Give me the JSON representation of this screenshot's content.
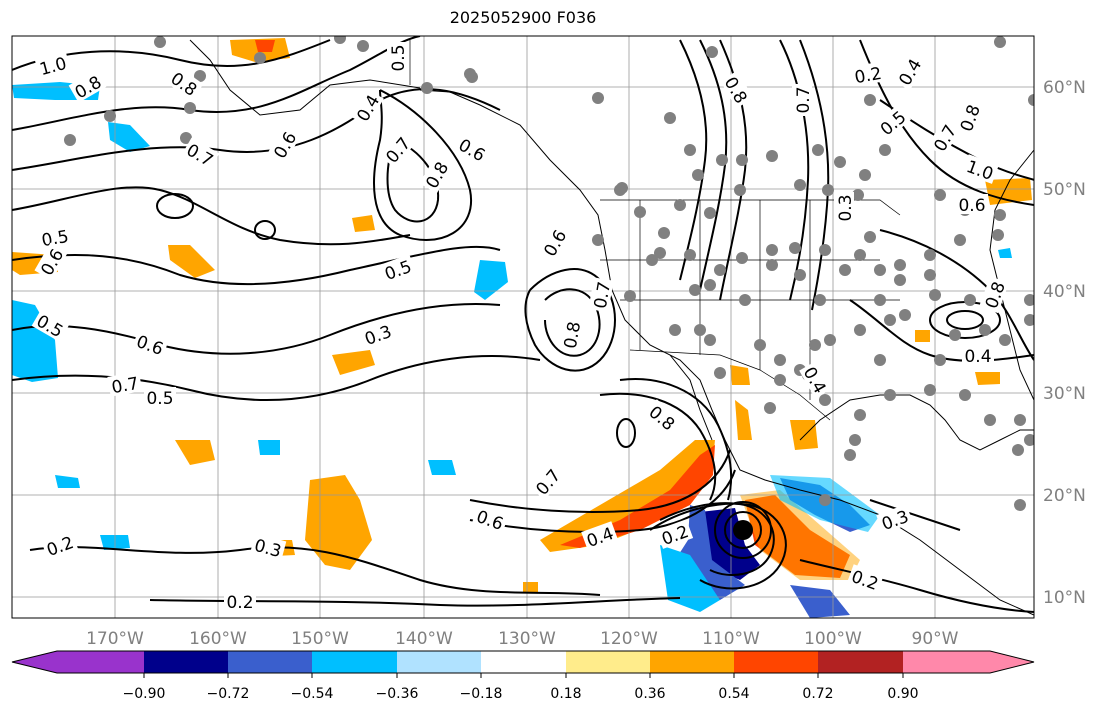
{
  "title": "2025052900 F036",
  "lon_labels": [
    "170°W",
    "160°W",
    "150°W",
    "140°W",
    "130°W",
    "120°W",
    "110°W",
    "100°W",
    "90°W"
  ],
  "lat_labels": [
    "60°N",
    "50°N",
    "40°N",
    "30°N",
    "20°N",
    "10°N"
  ],
  "contour_labels": [
    "1.0",
    "0.8",
    "0.7",
    "0.6",
    "0.5",
    "0.4",
    "0.3",
    "0.2"
  ],
  "colorbar": {
    "tick_labels": [
      "−0.90",
      "−0.72",
      "−0.54",
      "−0.36",
      "−0.18",
      "0.18",
      "0.36",
      "0.54",
      "0.72",
      "0.90"
    ],
    "colors": [
      "#9933cc",
      "#00008b",
      "#3a5fcd",
      "#00bfff",
      "#b0e2ff",
      "#ffffff",
      "#ffec8b",
      "#ffa500",
      "#ff4500",
      "#b22222",
      "#ff88aa"
    ]
  }
}
